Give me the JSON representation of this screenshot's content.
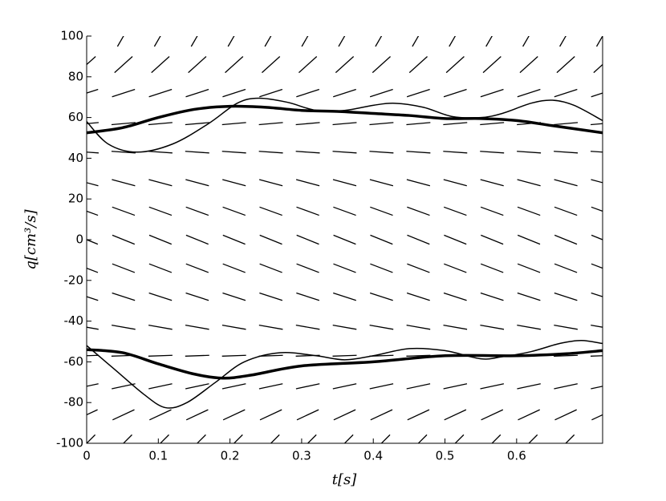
{
  "chart_data": {
    "type": "direction-field",
    "xlabel": "t[s]",
    "ylabel": "q[cm³/s]",
    "xlim": [
      0,
      0.72
    ],
    "ylim": [
      -100,
      100
    ],
    "xticks": [
      0,
      0.1,
      0.2,
      0.3,
      0.4,
      0.5,
      0.6
    ],
    "yticks": [
      -100,
      -80,
      -60,
      -40,
      -20,
      0,
      20,
      40,
      60,
      80,
      100
    ],
    "field": {
      "x": [
        0,
        0.0514,
        0.1029,
        0.1543,
        0.2057,
        0.2571,
        0.3086,
        0.36,
        0.4114,
        0.4629,
        0.5143,
        0.5657,
        0.6171,
        0.6686,
        0.72
      ],
      "y": [
        100,
        86,
        72,
        57,
        43,
        28,
        14,
        0,
        -14,
        -28,
        -43,
        -57,
        -72,
        -86,
        -100
      ],
      "angle": [
        60,
        42,
        18,
        5,
        -4,
        -15,
        -20,
        -22,
        -21,
        -18,
        -10,
        2,
        12,
        25,
        45
      ],
      "color": "#000000"
    },
    "series": [
      {
        "color": "#000000",
        "linewidth": 3.5,
        "x": [
          0,
          0.05,
          0.1,
          0.15,
          0.2,
          0.25,
          0.3,
          0.35,
          0.4,
          0.45,
          0.5,
          0.55,
          0.6,
          0.65,
          0.72
        ],
        "y": [
          52.5,
          55,
          60,
          64,
          65.5,
          65,
          63.5,
          63,
          62,
          61,
          59.5,
          59.5,
          58.5,
          56,
          52.5
        ]
      },
      {
        "color": "#000000",
        "linewidth": 1.5,
        "x": [
          0,
          0.03,
          0.07,
          0.12,
          0.17,
          0.21,
          0.24,
          0.28,
          0.32,
          0.36,
          0.4,
          0.43,
          0.47,
          0.51,
          0.55,
          0.58,
          0.62,
          0.65,
          0.68,
          0.72
        ],
        "y": [
          58,
          47,
          43,
          47,
          57,
          67,
          69.5,
          67.5,
          63.5,
          63.5,
          66,
          67,
          65,
          60.5,
          60,
          62,
          67,
          68.5,
          66,
          58.5
        ]
      },
      {
        "color": "#000000",
        "linewidth": 3.5,
        "x": [
          0,
          0.05,
          0.1,
          0.15,
          0.19,
          0.23,
          0.3,
          0.4,
          0.5,
          0.6,
          0.67,
          0.72
        ],
        "y": [
          -54,
          -55.5,
          -61,
          -66,
          -68,
          -66.5,
          -62,
          -60,
          -57,
          -57,
          -56,
          -54.5
        ]
      },
      {
        "color": "#000000",
        "linewidth": 1.5,
        "x": [
          0,
          0.04,
          0.08,
          0.11,
          0.14,
          0.18,
          0.22,
          0.27,
          0.32,
          0.36,
          0.4,
          0.45,
          0.5,
          0.55,
          0.58,
          0.62,
          0.66,
          0.69,
          0.72
        ],
        "y": [
          -52,
          -64,
          -76,
          -82.5,
          -80,
          -70,
          -60,
          -55.5,
          -57,
          -59,
          -57,
          -53.5,
          -54.5,
          -58.5,
          -57.5,
          -55,
          -51,
          -49.5,
          -51
        ]
      }
    ]
  }
}
